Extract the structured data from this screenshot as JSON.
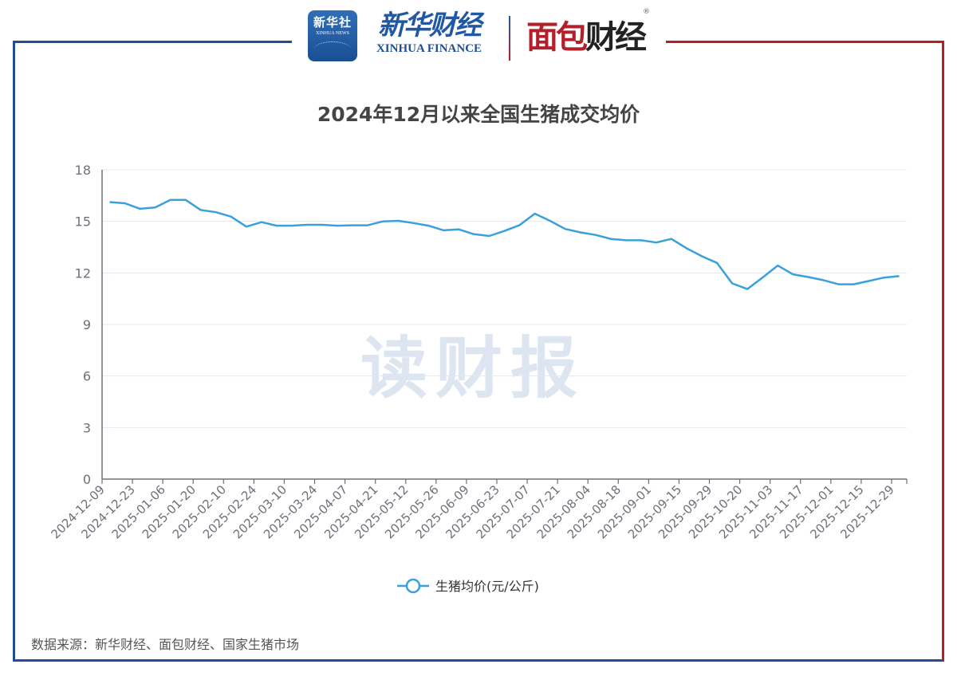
{
  "header": {
    "logo_xinhua_news": {
      "cn": "新华社",
      "en": "XINHUA NEWS"
    },
    "logo_xinhua_finance": {
      "cn": "新华财经",
      "en": "XINHUA FINANCE"
    },
    "logo_mianbao": {
      "part1": "面包",
      "part2": "财经",
      "reg": "®"
    }
  },
  "watermark": "读财报",
  "source": "数据来源：新华财经、面包财经、国家生猪市场",
  "colors": {
    "line": "#3aa0dc",
    "frame_left": "#1f4e94",
    "frame_right": "#b3202a",
    "grid": "#e3e7f2"
  },
  "chart_data": {
    "type": "line",
    "title": "2024年12月以来全国生猪成交均价",
    "xlabel": "",
    "ylabel": "",
    "ylim": [
      0,
      18
    ],
    "yticks": [
      0,
      3,
      6,
      9,
      12,
      15,
      18
    ],
    "grid": true,
    "legend_position": "bottom",
    "x_tick_labels": [
      "2024-12-09",
      "2024-12-23",
      "2025-01-06",
      "2025-01-20",
      "2025-02-10",
      "2025-02-24",
      "2025-03-10",
      "2025-03-24",
      "2025-04-07",
      "2025-04-21",
      "2025-05-12",
      "2025-05-26",
      "2025-06-09",
      "2025-06-23",
      "2025-07-07",
      "2025-07-21",
      "2025-08-04",
      "2025-08-18",
      "2025-09-01",
      "2025-09-15",
      "2025-09-29",
      "2025-10-20",
      "2025-11-03",
      "2025-11-17",
      "2025-12-01",
      "2025-12-15",
      "2025-12-29"
    ],
    "x": [
      "2024-12-09",
      "2024-12-16",
      "2024-12-23",
      "2024-12-30",
      "2025-01-06",
      "2025-01-13",
      "2025-01-20",
      "2025-01-27",
      "2025-02-10",
      "2025-02-17",
      "2025-02-24",
      "2025-03-03",
      "2025-03-10",
      "2025-03-17",
      "2025-03-24",
      "2025-03-31",
      "2025-04-07",
      "2025-04-14",
      "2025-04-21",
      "2025-04-28",
      "2025-05-12",
      "2025-05-19",
      "2025-05-26",
      "2025-06-02",
      "2025-06-09",
      "2025-06-16",
      "2025-06-23",
      "2025-06-30",
      "2025-07-07",
      "2025-07-14",
      "2025-07-21",
      "2025-07-28",
      "2025-08-04",
      "2025-08-11",
      "2025-08-18",
      "2025-08-25",
      "2025-09-01",
      "2025-09-08",
      "2025-09-15",
      "2025-09-22",
      "2025-09-29",
      "2025-10-13",
      "2025-10-20",
      "2025-10-27",
      "2025-11-03",
      "2025-11-10",
      "2025-11-17",
      "2025-11-24",
      "2025-12-01",
      "2025-12-08",
      "2025-12-15",
      "2025-12-22",
      "2025-12-29"
    ],
    "series": [
      {
        "name": "生猪均价(元/公斤)",
        "values": [
          16.12,
          16.05,
          15.73,
          15.81,
          16.25,
          16.25,
          15.66,
          15.53,
          15.27,
          14.69,
          14.95,
          14.75,
          14.75,
          14.8,
          14.8,
          14.75,
          14.77,
          14.77,
          15.0,
          15.03,
          14.9,
          14.75,
          14.48,
          14.53,
          14.25,
          14.15,
          14.44,
          14.78,
          15.45,
          15.03,
          14.56,
          14.36,
          14.21,
          13.98,
          13.9,
          13.9,
          13.77,
          13.98,
          13.43,
          12.97,
          12.58,
          11.39,
          11.06,
          11.73,
          12.43,
          11.92,
          11.76,
          11.58,
          11.34,
          11.34,
          11.53,
          11.73,
          11.81
        ]
      }
    ]
  }
}
